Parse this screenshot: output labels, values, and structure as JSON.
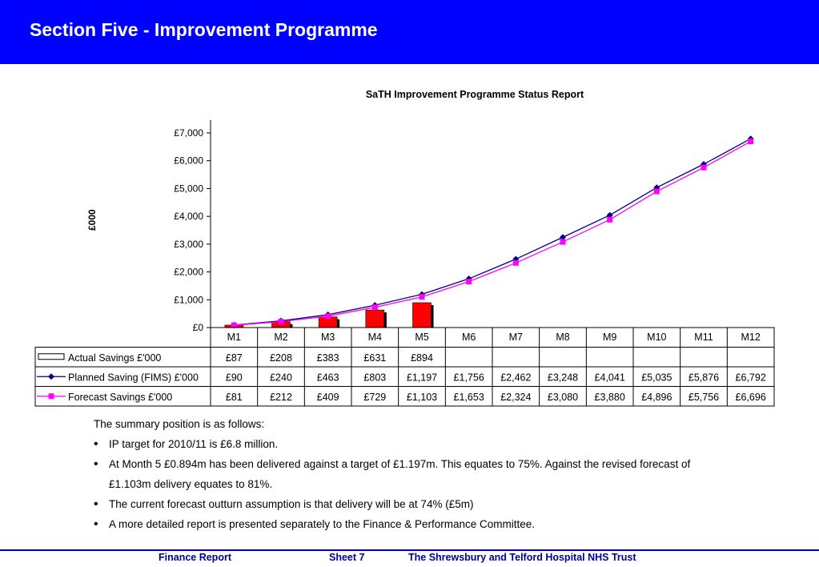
{
  "header": {
    "title": "Section Five - Improvement Programme"
  },
  "chart_data": {
    "type": "bar",
    "title": "SaTH Improvement Programme Status Report",
    "ylabel": "£000",
    "xlabel": "",
    "ylim": [
      0,
      7000
    ],
    "yticks": [
      "£0",
      "£1,000",
      "£2,000",
      "£3,000",
      "£4,000",
      "£5,000",
      "£6,000",
      "£7,000"
    ],
    "categories": [
      "M1",
      "M2",
      "M3",
      "M4",
      "M5",
      "M6",
      "M7",
      "M8",
      "M9",
      "M10",
      "M11",
      "M12"
    ],
    "series": [
      {
        "name": "Actual Savings £'000",
        "kind": "bar",
        "color": "#ff0000",
        "values": [
          87,
          208,
          383,
          631,
          894,
          null,
          null,
          null,
          null,
          null,
          null,
          null
        ],
        "labels": [
          "£87",
          "£208",
          "£383",
          "£631",
          "£894",
          "",
          "",
          "",
          "",
          "",
          "",
          ""
        ]
      },
      {
        "name": "Planned Saving (FIMS) £'000",
        "kind": "line",
        "color": "#000080",
        "marker": "diamond",
        "values": [
          90,
          240,
          463,
          803,
          1197,
          1756,
          2462,
          3248,
          4041,
          5035,
          5876,
          6792
        ],
        "labels": [
          "£90",
          "£240",
          "£463",
          "£803",
          "£1,197",
          "£1,756",
          "£2,462",
          "£3,248",
          "£4,041",
          "£5,035",
          "£5,876",
          "£6,792"
        ]
      },
      {
        "name": "Forecast Savings £'000",
        "kind": "line",
        "color": "#ff00ff",
        "marker": "square",
        "values": [
          81,
          212,
          409,
          729,
          1103,
          1653,
          2324,
          3080,
          3880,
          4896,
          5756,
          6696
        ],
        "labels": [
          "£81",
          "£212",
          "£409",
          "£729",
          "£1,103",
          "£1,653",
          "£2,324",
          "£3,080",
          "£3,880",
          "£4,896",
          "£5,756",
          "£6,696"
        ]
      }
    ],
    "grid": false,
    "legend": "data-table"
  },
  "summary": {
    "intro": "The summary position is as  follows:",
    "bullet1": "IP target for 2010/11  is £6.8 million.",
    "bullet2": "At Month 5 £0.894m has been delivered against a target of £1.197m.  This equates to 75%.  Against the revised forecast of",
    "bullet2_cont": "£1.103m delivery equates to 81%.",
    "bullet3": "The current forecast outturn assumption is that delivery will be at 74%  (£5m)",
    "bullet4": "A more detailed report is presented separately to the Finance & Performance Committee."
  },
  "footer": {
    "left": "Finance Report",
    "sheet": "Sheet  7",
    "org": "The Shrewsbury and Telford Hospital NHS Trust"
  }
}
